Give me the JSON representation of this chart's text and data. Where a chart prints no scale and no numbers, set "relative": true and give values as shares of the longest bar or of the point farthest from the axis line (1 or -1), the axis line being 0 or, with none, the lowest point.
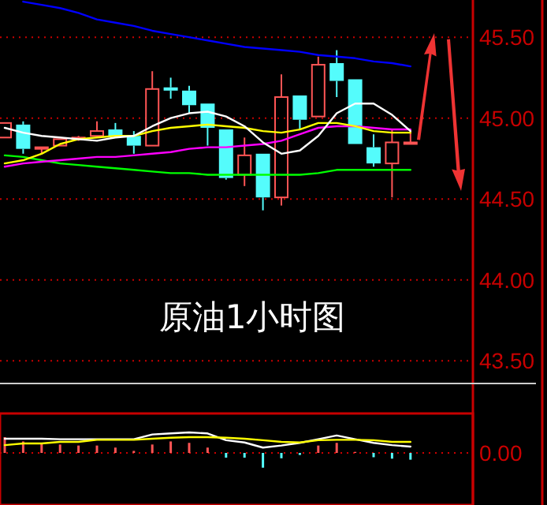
{
  "chart_data": [
    {
      "type": "candlestick",
      "categories": [
        null,
        null,
        null,
        null,
        null,
        null,
        null,
        null,
        null,
        null,
        null,
        null,
        null,
        null,
        null,
        null,
        null,
        null,
        null,
        null,
        null,
        null,
        null
      ],
      "ohlc": [
        [
          44.88,
          44.97,
          44.88,
          44.97
        ],
        [
          44.96,
          44.98,
          44.78,
          44.81
        ],
        [
          44.81,
          44.82,
          44.78,
          44.82
        ],
        [
          44.83,
          44.87,
          44.83,
          44.87
        ],
        [
          44.87,
          44.89,
          44.86,
          44.88
        ],
        [
          44.89,
          44.98,
          44.89,
          44.92
        ],
        [
          44.93,
          44.97,
          44.89,
          44.89
        ],
        [
          44.89,
          44.92,
          44.78,
          44.83
        ],
        [
          44.83,
          45.29,
          44.83,
          45.18
        ],
        [
          45.19,
          45.25,
          45.12,
          45.17
        ],
        [
          45.17,
          45.2,
          45.03,
          45.08
        ],
        [
          45.09,
          45.09,
          44.83,
          44.94
        ],
        [
          44.93,
          44.93,
          44.62,
          44.63
        ],
        [
          44.65,
          44.88,
          44.58,
          44.77
        ],
        [
          44.78,
          44.78,
          44.43,
          44.51
        ],
        [
          44.51,
          45.27,
          44.46,
          45.13
        ],
        [
          45.14,
          45.14,
          44.93,
          44.99
        ],
        [
          45.01,
          45.38,
          45.01,
          45.33
        ],
        [
          45.34,
          45.42,
          45.13,
          45.23
        ],
        [
          45.24,
          45.24,
          44.84,
          44.84
        ],
        [
          44.82,
          44.9,
          44.7,
          44.72
        ],
        [
          44.72,
          44.93,
          44.51,
          44.85
        ],
        [
          44.85,
          44.93,
          44.85,
          44.85
        ]
      ],
      "colors": [
        "#ff5555",
        "#54fcfc",
        "#ff5555",
        "#ff5555",
        "#ff5555",
        "#ff5555",
        "#54fcfc",
        "#54fcfc",
        "#ff5555",
        "#54fcfc",
        "#54fcfc",
        "#54fcfc",
        "#54fcfc",
        "#ff5555",
        "#54fcfc",
        "#ff5555",
        "#54fcfc",
        "#ff5555",
        "#54fcfc",
        "#54fcfc",
        "#54fcfc",
        "#ff5555",
        "#ff5555"
      ],
      "series": [
        {
          "type": "line",
          "color": "#0000ff",
          "values": [
            null,
            45.72,
            45.7,
            45.68,
            45.65,
            45.61,
            45.59,
            45.57,
            45.54,
            45.52,
            45.5,
            45.48,
            45.46,
            45.44,
            45.43,
            45.42,
            45.41,
            45.39,
            45.38,
            45.37,
            45.35,
            45.34,
            45.32
          ]
        },
        {
          "type": "line",
          "color": "#00ff00",
          "values": [
            44.77,
            44.76,
            44.74,
            44.72,
            44.71,
            44.7,
            44.69,
            44.68,
            44.67,
            44.66,
            44.66,
            44.65,
            44.65,
            44.65,
            44.65,
            44.65,
            44.65,
            44.66,
            44.68,
            44.68,
            44.68,
            44.68,
            44.68
          ]
        },
        {
          "type": "line",
          "color": "#ff00ff",
          "values": [
            44.7,
            44.72,
            44.73,
            44.74,
            44.75,
            44.76,
            44.76,
            44.77,
            44.78,
            44.79,
            44.81,
            44.82,
            44.82,
            44.83,
            44.84,
            44.86,
            44.9,
            44.94,
            44.95,
            44.95,
            44.94,
            44.93,
            44.93
          ]
        },
        {
          "type": "line",
          "color": "#ffff00",
          "values": [
            44.72,
            44.74,
            44.78,
            44.84,
            44.87,
            44.88,
            44.89,
            44.89,
            44.92,
            44.94,
            44.95,
            44.96,
            44.95,
            44.94,
            44.92,
            44.91,
            44.93,
            44.97,
            44.97,
            44.95,
            44.92,
            44.91,
            44.91
          ]
        },
        {
          "type": "line",
          "color": "#ffffff",
          "values": [
            44.94,
            44.91,
            44.89,
            44.88,
            44.87,
            44.86,
            44.88,
            44.89,
            44.95,
            45.0,
            45.03,
            45.04,
            45.01,
            44.95,
            44.85,
            44.78,
            44.8,
            44.89,
            45.03,
            45.09,
            45.09,
            45.02,
            44.92
          ]
        }
      ],
      "ylim": [
        43.36,
        45.73
      ],
      "yticks": [
        {
          "value": 43.5,
          "label": "43.50"
        },
        {
          "value": 44,
          "label": "44.00"
        },
        {
          "value": 44.5,
          "label": "44.50"
        },
        {
          "value": 45,
          "label": "45.00"
        },
        {
          "value": 45.5,
          "label": "45.50"
        }
      ],
      "grid": "y",
      "annotations": [
        "原油1小时图"
      ]
    },
    {
      "type": "bar",
      "relative": true,
      "categories": [
        null,
        null,
        null,
        null,
        null,
        null,
        null,
        null,
        null,
        null,
        null,
        null,
        null,
        null,
        null,
        null,
        null,
        null,
        null,
        null,
        null,
        null,
        null
      ],
      "series": [
        {
          "type": "bar",
          "colors": [
            "#ff5555",
            "#ff5555",
            "#ff5555",
            "#ff5555",
            "#ff5555",
            "#ff5555",
            "#ff5555",
            "#ff5555",
            "#ff5555",
            "#ff5555",
            "#ff5555",
            "#ff5555",
            "#54fcfc",
            "#54fcfc",
            "#54fcfc",
            "#54fcfc",
            "#54fcfc",
            "#ff5555",
            "#ff5555",
            "#ff5555",
            "#54fcfc",
            "#54fcfc",
            "#54fcfc"
          ],
          "values": [
            0.77,
            0.56,
            0.44,
            0.41,
            0.36,
            0.36,
            0.26,
            0.1,
            0.41,
            0.56,
            0.49,
            0.26,
            -0.23,
            -0.23,
            -0.72,
            -0.26,
            -0.1,
            0.36,
            0.49,
            0.05,
            -0.21,
            -0.28,
            -0.33
          ]
        },
        {
          "type": "line",
          "color": "#ffffff",
          "values": [
            0.69,
            0.69,
            0.69,
            0.67,
            0.67,
            0.67,
            0.67,
            0.67,
            0.9,
            0.95,
            1,
            0.95,
            0.62,
            0.51,
            0.26,
            0.36,
            0.49,
            0.67,
            0.85,
            0.67,
            0.49,
            0.38,
            0.31
          ]
        },
        {
          "type": "line",
          "color": "#ffff00",
          "values": [
            0.38,
            0.46,
            0.46,
            0.54,
            0.54,
            0.64,
            0.64,
            0.64,
            0.69,
            0.74,
            0.77,
            0.77,
            0.74,
            0.69,
            0.62,
            0.54,
            0.51,
            0.62,
            0.64,
            0.64,
            0.62,
            0.54,
            0.54
          ]
        }
      ],
      "ref_lines": [
        {
          "axis": "y",
          "value": 0,
          "label": "0.00",
          "color": "#cc0000",
          "line_style": "dotted"
        }
      ]
    }
  ]
}
